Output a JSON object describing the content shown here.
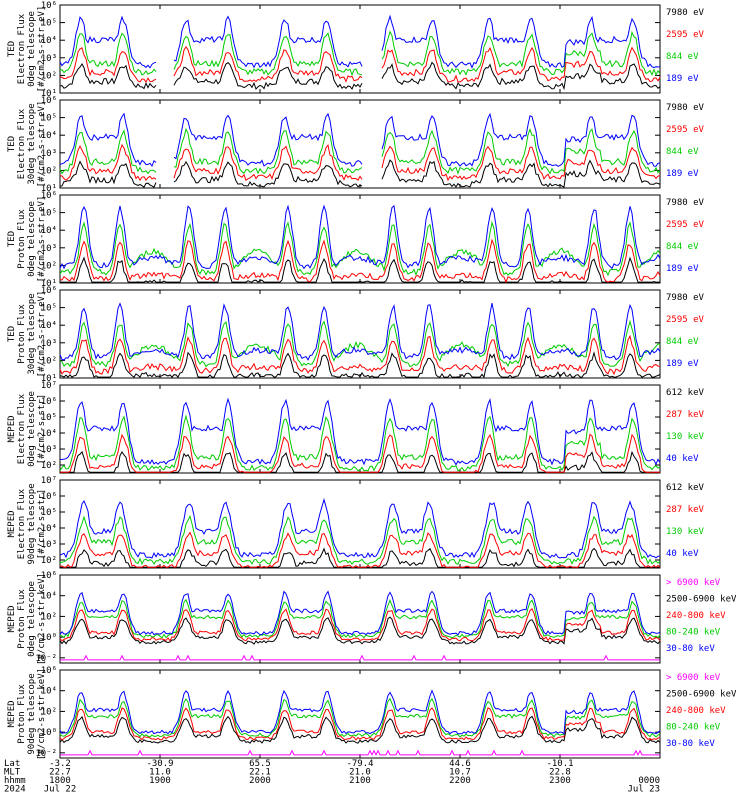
{
  "chart_data": {
    "type": "line",
    "x_ticks": [
      "1800",
      "1900",
      "2000",
      "2100",
      "2200",
      "2300",
      "0000"
    ],
    "ephemeris": [
      {
        "name": "Lat",
        "values": [
          "-3.2",
          "-30.9",
          "65.5",
          "-79.4",
          "44.6",
          "-10.1",
          ""
        ]
      },
      {
        "name": "MLT",
        "values": [
          "22.7",
          "11.0",
          "22.1",
          "21.0",
          "10.7",
          "22.8",
          ""
        ]
      },
      {
        "name": "hhmm",
        "values": [
          "1800",
          "1900",
          "2000",
          "2100",
          "2200",
          "2300",
          "0000"
        ]
      },
      {
        "name": "2024",
        "values": [
          "Jul 22",
          "",
          "",
          "",
          "",
          "",
          "Jul 23"
        ]
      }
    ],
    "panels": [
      {
        "ylabel": [
          "TED",
          "Electron Flux",
          "0deg telescope",
          "[#/cm2-s-str-eV]"
        ],
        "ylog": [
          1,
          6
        ],
        "y_ticks": [
          "10¹",
          "10²",
          "10³",
          "10⁴",
          "10⁵",
          "10⁶"
        ],
        "base": 2.6,
        "peak": 5.2,
        "kind": "ted-e",
        "series": [
          {
            "name": "7980 eV",
            "color": "#000000"
          },
          {
            "name": "2595 eV",
            "color": "#ff0000"
          },
          {
            "name": "844 eV",
            "color": "#00cc00"
          },
          {
            "name": "189 eV",
            "color": "#0000ff"
          }
        ]
      },
      {
        "ylabel": [
          "TED",
          "Electron Flux",
          "30deg telescope",
          "[#/cm2-s-str-eV]"
        ],
        "ylog": [
          1,
          6
        ],
        "y_ticks": [
          "10¹",
          "10²",
          "10³",
          "10⁴",
          "10⁵",
          "10⁶"
        ],
        "base": 2.4,
        "peak": 5.1,
        "kind": "ted-e",
        "series": [
          {
            "name": "7980 eV",
            "color": "#000000"
          },
          {
            "name": "2595 eV",
            "color": "#ff0000"
          },
          {
            "name": "844 eV",
            "color": "#00cc00"
          },
          {
            "name": "189 eV",
            "color": "#0000ff"
          }
        ]
      },
      {
        "ylabel": [
          "TED",
          "Proton Flux",
          "0deg telescope",
          "[#/cm2-s-str-eV]"
        ],
        "ylog": [
          1,
          6
        ],
        "y_ticks": [
          "10¹",
          "10²",
          "10³",
          "10⁴",
          "10⁵",
          "10⁶"
        ],
        "base": 2.0,
        "peak": 5.3,
        "kind": "ted-p",
        "series": [
          {
            "name": "7980 eV",
            "color": "#000000"
          },
          {
            "name": "2595 eV",
            "color": "#ff0000"
          },
          {
            "name": "844 eV",
            "color": "#00cc00"
          },
          {
            "name": "189 eV",
            "color": "#0000ff"
          }
        ]
      },
      {
        "ylabel": [
          "TED",
          "Proton Flux",
          "30deg telescope",
          "[#/cm2-s-str-eV]"
        ],
        "ylog": [
          1,
          6
        ],
        "y_ticks": [
          "10¹",
          "10²",
          "10³",
          "10⁴",
          "10⁵",
          "10⁶"
        ],
        "base": 2.2,
        "peak": 5.1,
        "kind": "ted-p",
        "series": [
          {
            "name": "7980 eV",
            "color": "#000000"
          },
          {
            "name": "2595 eV",
            "color": "#ff0000"
          },
          {
            "name": "844 eV",
            "color": "#00cc00"
          },
          {
            "name": "189 eV",
            "color": "#0000ff"
          }
        ]
      },
      {
        "ylabel": [
          "MEPED",
          "Electron Flux",
          "0deg telescope",
          "[#/cm2-s-str]"
        ],
        "ylog": [
          1.5,
          7
        ],
        "y_ticks": [
          "10²",
          "10³",
          "10⁴",
          "10⁵",
          "10⁶",
          "10⁷"
        ],
        "base": 2.2,
        "peak": 6.0,
        "kind": "mep-e",
        "series": [
          {
            "name": "612 keV",
            "color": "#000000"
          },
          {
            "name": "287 keV",
            "color": "#ff0000"
          },
          {
            "name": "130 keV",
            "color": "#00cc00"
          },
          {
            "name": "40 keV",
            "color": "#0000ff"
          }
        ]
      },
      {
        "ylabel": [
          "MEPED",
          "Electron Flux",
          "90deg telescope",
          "[#/cm2-s-str]"
        ],
        "ylog": [
          1.5,
          7
        ],
        "y_ticks": [
          "10²",
          "10³",
          "10⁴",
          "10⁵",
          "10⁶",
          "10⁷"
        ],
        "base": 2.3,
        "peak": 5.6,
        "kind": "mep-e90",
        "series": [
          {
            "name": "612 keV",
            "color": "#000000"
          },
          {
            "name": "287 keV",
            "color": "#ff0000"
          },
          {
            "name": "130 keV",
            "color": "#00cc00"
          },
          {
            "name": "40 keV",
            "color": "#0000ff"
          }
        ]
      },
      {
        "ylabel": [
          "MEPED",
          "Proton Flux",
          "0deg telescope",
          "[#/cm2-s-str-keV]"
        ],
        "ylog": [
          -2.5,
          6
        ],
        "y_ticks": [
          "10⁻²",
          "10⁰",
          "10²",
          "10⁴",
          "10⁶"
        ],
        "base": 0.4,
        "peak": 4.3,
        "kind": "mep-p",
        "series": [
          {
            "name": "> 6900 keV",
            "color": "#ff00ff"
          },
          {
            "name": "2500-6900 keV",
            "color": "#000000"
          },
          {
            "name": "240-800 keV",
            "color": "#ff0000"
          },
          {
            "name": "80-240 keV",
            "color": "#00cc00"
          },
          {
            "name": "30-80 keV",
            "color": "#0000ff"
          }
        ]
      },
      {
        "ylabel": [
          "MEPED",
          "Proton Flux",
          "90deg telescope",
          "[#/cm2-s-str-keV]"
        ],
        "ylog": [
          -2.5,
          6
        ],
        "y_ticks": [
          "10⁻²",
          "10⁰",
          "10²",
          "10⁴",
          "10⁶"
        ],
        "base": 0.0,
        "peak": 3.9,
        "kind": "mep-p",
        "series": [
          {
            "name": "> 6900 keV",
            "color": "#ff00ff"
          },
          {
            "name": "2500-6900 keV",
            "color": "#000000"
          },
          {
            "name": "240-800 keV",
            "color": "#ff0000"
          },
          {
            "name": "80-240 keV",
            "color": "#00cc00"
          },
          {
            "name": "30-80 keV",
            "color": "#0000ff"
          }
        ]
      }
    ]
  }
}
